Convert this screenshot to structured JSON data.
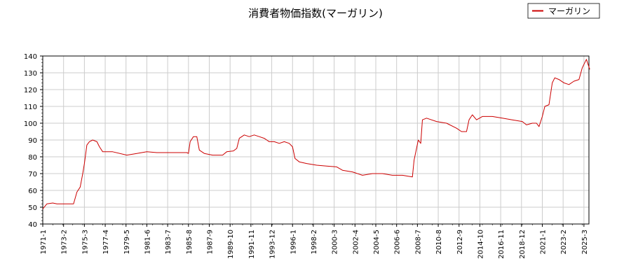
{
  "chart_data": {
    "type": "line",
    "title": "消費者物価指数(マーガリン)",
    "xlabel": "",
    "ylabel": "",
    "ylim": [
      40,
      140
    ],
    "y_ticks": [
      40,
      50,
      60,
      70,
      80,
      90,
      100,
      110,
      120,
      130,
      140
    ],
    "x_tick_labels": [
      "1971-1",
      "1973-2",
      "1975-3",
      "1977-4",
      "1979-5",
      "1981-6",
      "1983-7",
      "1985-8",
      "1987-9",
      "1989-10",
      "1991-11",
      "1993-12",
      "1996-1",
      "1998-2",
      "2000-3",
      "2002-4",
      "2004-5",
      "2006-6",
      "2008-7",
      "2010-8",
      "2012-9",
      "2014-10",
      "2016-11",
      "2018-12",
      "2021-1",
      "2023-2",
      "2025-3"
    ],
    "grid": true,
    "legend_position": "top-right",
    "colors": {
      "series": "#cc0000",
      "grid": "#cccccc",
      "axis": "#000000"
    },
    "series": [
      {
        "name": "マーガリン",
        "points": [
          [
            "1971-1",
            49
          ],
          [
            "1971-6",
            52
          ],
          [
            "1972-1",
            52.5
          ],
          [
            "1972-6",
            52
          ],
          [
            "1973-6",
            52
          ],
          [
            "1974-2",
            52
          ],
          [
            "1974-6",
            59
          ],
          [
            "1974-10",
            62
          ],
          [
            "1975-1",
            70
          ],
          [
            "1975-3",
            76
          ],
          [
            "1975-6",
            87
          ],
          [
            "1975-9",
            89
          ],
          [
            "1976-1",
            90
          ],
          [
            "1976-6",
            89
          ],
          [
            "1976-9",
            86
          ],
          [
            "1977-1",
            83
          ],
          [
            "1978-1",
            83
          ],
          [
            "1979-6",
            81
          ],
          [
            "1980-6",
            82
          ],
          [
            "1981-6",
            83
          ],
          [
            "1982-6",
            82.5
          ],
          [
            "1983-6",
            82.5
          ],
          [
            "1984-6",
            82.5
          ],
          [
            "1985-6",
            82.5
          ],
          [
            "1985-8",
            82
          ],
          [
            "1985-10",
            89
          ],
          [
            "1986-2",
            92
          ],
          [
            "1986-6",
            92
          ],
          [
            "1986-9",
            84
          ],
          [
            "1987-3",
            82
          ],
          [
            "1988-1",
            81
          ],
          [
            "1989-1",
            81
          ],
          [
            "1989-6",
            83
          ],
          [
            "1990-2",
            83.5
          ],
          [
            "1990-6",
            85
          ],
          [
            "1990-9",
            91
          ],
          [
            "1991-3",
            93
          ],
          [
            "1991-9",
            92
          ],
          [
            "1992-3",
            93
          ],
          [
            "1992-9",
            92
          ],
          [
            "1993-3",
            91
          ],
          [
            "1993-9",
            89
          ],
          [
            "1994-3",
            89
          ],
          [
            "1994-9",
            88
          ],
          [
            "1995-3",
            89
          ],
          [
            "1995-9",
            88
          ],
          [
            "1996-1",
            86
          ],
          [
            "1996-4",
            79
          ],
          [
            "1996-9",
            77
          ],
          [
            "1997-6",
            76
          ],
          [
            "1998-6",
            75
          ],
          [
            "1999-6",
            74.5
          ],
          [
            "2000-6",
            74
          ],
          [
            "2001-1",
            72
          ],
          [
            "2002-1",
            71
          ],
          [
            "2003-1",
            69
          ],
          [
            "2004-1",
            70
          ],
          [
            "2005-1",
            70
          ],
          [
            "2006-1",
            69
          ],
          [
            "2007-1",
            69
          ],
          [
            "2008-1",
            68
          ],
          [
            "2008-3",
            78
          ],
          [
            "2008-8",
            90
          ],
          [
            "2008-11",
            88
          ],
          [
            "2009-1",
            102
          ],
          [
            "2009-6",
            103
          ],
          [
            "2010-6",
            101
          ],
          [
            "2011-6",
            100
          ],
          [
            "2012-6",
            97
          ],
          [
            "2012-12",
            95
          ],
          [
            "2013-6",
            95
          ],
          [
            "2013-9",
            102
          ],
          [
            "2014-1",
            105
          ],
          [
            "2014-6",
            102
          ],
          [
            "2015-1",
            104
          ],
          [
            "2016-1",
            104
          ],
          [
            "2017-1",
            103
          ],
          [
            "2018-1",
            102
          ],
          [
            "2019-1",
            101
          ],
          [
            "2019-6",
            99
          ],
          [
            "2020-1",
            100
          ],
          [
            "2020-6",
            100
          ],
          [
            "2020-9",
            98
          ],
          [
            "2021-1",
            104
          ],
          [
            "2021-4",
            110
          ],
          [
            "2021-9",
            111
          ],
          [
            "2022-1",
            124
          ],
          [
            "2022-4",
            127
          ],
          [
            "2022-9",
            126
          ],
          [
            "2023-3",
            124
          ],
          [
            "2023-9",
            123
          ],
          [
            "2024-3",
            125
          ],
          [
            "2024-9",
            126
          ],
          [
            "2025-1",
            133
          ],
          [
            "2025-6",
            138
          ],
          [
            "2025-10",
            132
          ]
        ]
      }
    ]
  }
}
